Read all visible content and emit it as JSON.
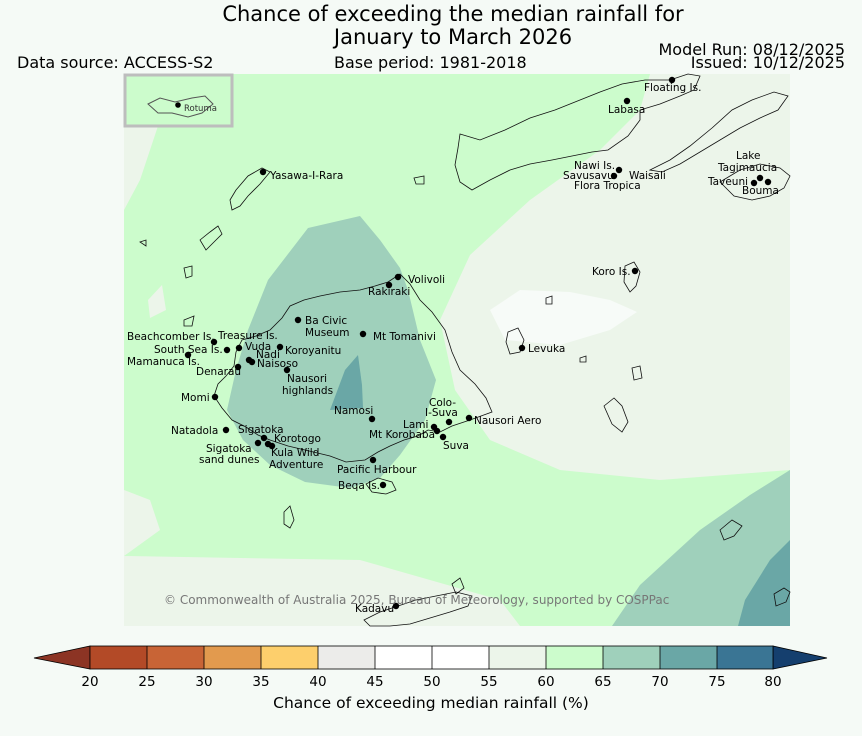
{
  "header": {
    "title_line1": "Chance of exceeding the median rainfall for",
    "title_line2": "January to March 2026",
    "data_source": "Data source: ACCESS-S2",
    "base_period": "Base period: 1981-2018",
    "model_run": "Model Run: 08/12/2025",
    "issued": "Issued: 10/12/2025"
  },
  "map": {
    "inset_label": "Rotuma",
    "copyright": "© Commonwealth of Australia 2025, Bureau of Meteorology, supported by COSPPac",
    "places": [
      "Floating Is.",
      "Labasa",
      "Yasawa-I-Rara",
      "Nawi Is.",
      "Savusavu",
      "Waisali",
      "Flora Tropica",
      "Lake",
      "Tagimaucia",
      "Taveuni",
      "Bouma",
      "Volivoli",
      "Rakiraki",
      "Koro Is.",
      "Ba Civic",
      "Museum",
      "Mt Tomanivi",
      "Beachcomber Is.",
      "Treasure Is.",
      "South Sea Is.",
      "Vuda",
      "Koroyanitu",
      "Nadi",
      "Mamanuca Is.",
      "Naisoso",
      "Denarau",
      "Nausori",
      "highlands",
      "Levuka",
      "Momi",
      "Colo-",
      "I-Suva",
      "Namosi",
      "Nausori Aero",
      "Lami",
      "Mt Korobaba",
      "Natadola",
      "Sigatoka",
      "Korotogo",
      "Suva",
      "Sigatoka",
      "sand dunes",
      "Kula Wild",
      "Adventure",
      "Pacific Harbour",
      "Beqa Is.",
      "Kadavu"
    ]
  },
  "legend": {
    "label": "Chance of exceeding median rainfall (%)",
    "ticks": [
      "20",
      "25",
      "30",
      "35",
      "40",
      "45",
      "50",
      "55",
      "60",
      "65",
      "70",
      "75",
      "80"
    ],
    "colors": [
      "#b34a27",
      "#c86436",
      "#e29a4e",
      "#fdcf6c",
      "#ececea",
      "#ffffff",
      "#ffffff",
      "#ecf5ea",
      "#ccfccc",
      "#9fd0bb",
      "#6aa7a6",
      "#3a7594"
    ],
    "low_color": "#8c3424",
    "high_color": "#153f6e"
  }
}
